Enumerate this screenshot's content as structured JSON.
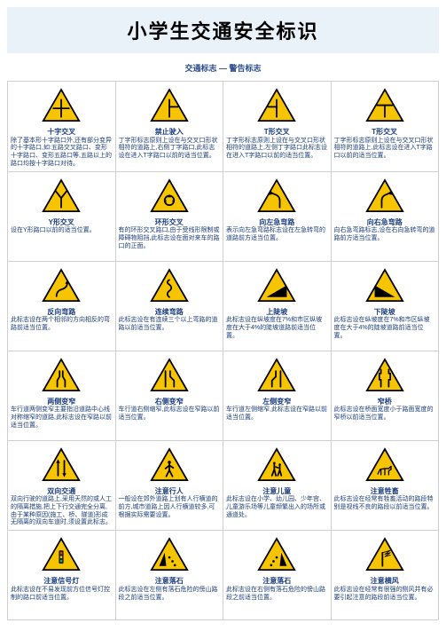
{
  "page": {
    "title": "小学生交通安全标识",
    "subtitle": "交通标志 — 警告标志",
    "title_bg": "#eaf2f9",
    "link_color": "#1a3d7c"
  },
  "sign_style": {
    "fill": "#f6c500",
    "stroke": "#000000",
    "stroke_width": 2,
    "inner_stroke": "#000000",
    "width": 44,
    "height": 40
  },
  "signs": [
    {
      "id": "cross",
      "name": "十字交叉",
      "desc": "除了基本形十字路口外,还有部分变异的十字路口,如:五路交叉路口、变形十字路口、变形五路口等,五路以上的路口均按十字路口对待。"
    },
    {
      "id": "no-entry-t",
      "name": "禁止驶入",
      "desc": "丁字形标志原则上设在与交叉口形状相符的道路上,右侧丁字路口,此标志设在进入T字路口以前的适当位置。"
    },
    {
      "id": "t-left",
      "name": "T形交叉",
      "desc": "丁字形标志原则上设在与交叉口形状相符的道路上,左侧丁字路口此标志设在进入T字路口以前的适当位置。"
    },
    {
      "id": "t-top",
      "name": "T形交叉",
      "desc": "丁字形标志原则上设在与交叉口形状相符的道路上,此标志设在进入T字路口以前的适当位置。"
    },
    {
      "id": "y-fork",
      "name": "Y形交叉",
      "desc": "设在Y形路口以前的适当位置。"
    },
    {
      "id": "roundabout",
      "name": "环形交叉",
      "desc": "有的环形交叉路口,由于受线形限制或障碍物阻挡,此标志设在面对来车的路口的正面。"
    },
    {
      "id": "curve-left",
      "name": "向左急弯路",
      "desc": "表示向左急弯路标志设在左急转弯的道路前方适当位置。"
    },
    {
      "id": "curve-right",
      "name": "向右急弯路",
      "desc": "向右急弯路标志,设在右向急转弯的道路前方适当位置。"
    },
    {
      "id": "reverse",
      "name": "反向弯路",
      "desc": "此标志设在两个相邻的方向相反的弯路前适当位置。"
    },
    {
      "id": "winding",
      "name": "连续弯路",
      "desc": "此标志设在有连续三个以上弯路的道路以前适当位置。"
    },
    {
      "id": "up-slope",
      "name": "上陡坡",
      "desc": "此标志设在纵坡度在7%和市区纵坡度在大于4%的陡坡道路前适当位置。"
    },
    {
      "id": "down-slope",
      "name": "下陡坡",
      "desc": "此标志设在纵坡度在7%和市区纵坡度在大于4%的陡坡道路前适当位置。"
    },
    {
      "id": "narrow-both",
      "name": "两侧变窄",
      "desc": "车行道两侧变窄主要指沿道路中心线对称缩窄的道路,此标志设在窄路以前适当位置。"
    },
    {
      "id": "narrow-right",
      "name": "右侧变窄",
      "desc": "车行道右侧缩窄,此标志设在窄路以前适当位置。"
    },
    {
      "id": "narrow-left",
      "name": "左侧变窄",
      "desc": "车行道左侧缩窄,此标志设在窄路以前适当位置。"
    },
    {
      "id": "narrow-bridge",
      "name": "窄桥",
      "desc": "此标志设在桥面宽度小于路面宽度的窄桥以前适当位置。"
    },
    {
      "id": "two-way",
      "name": "双向交通",
      "desc": "双向行驶的道路上,采用天然的或人工的隔离措施,把上下行交通完全分离,由于某种原因(施工、桥、隧道)形成无隔离的双向车道时,须设置此标志。"
    },
    {
      "id": "pedestrian",
      "name": "注意行人",
      "desc": "一般设在郊外道路上划有人行横道的前方,城市道路上因人行横道较多,可根据实际需要设置。"
    },
    {
      "id": "children",
      "name": "注意儿童",
      "desc": "此标志设在小学、幼儿园、少年宫、儿童游乐场等儿童频繁出入的场所或通道处。"
    },
    {
      "id": "animals",
      "name": "注意牲畜",
      "desc": "此标志设在经常有牲畜活动的路段特别是视线不良的路段以前适当位置。"
    },
    {
      "id": "traffic-light",
      "name": "注意信号灯",
      "desc": "此标志设在不易发现前方位信号灯控制的路口前适当位置。"
    },
    {
      "id": "rockfall-l",
      "name": "注意落石",
      "desc": "此标志设在左侧有落石危险的傍山路段之前适当位置。"
    },
    {
      "id": "rockfall-r",
      "name": "注意落石",
      "desc": "此标志设在右侧有落石危险的傍山路段之前适当位置。"
    },
    {
      "id": "crosswind",
      "name": "注意横风",
      "desc": "此标志设在经常有很强的侧风并有必要引起注意的路段前适当位置。"
    }
  ]
}
